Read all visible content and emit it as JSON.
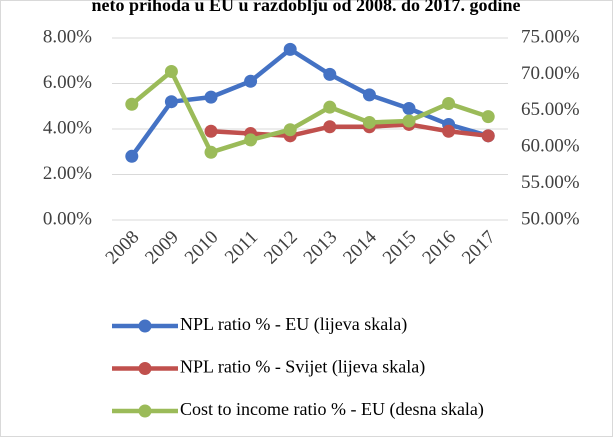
{
  "chart_data": {
    "type": "line",
    "title": "neto prihoda u EU u razdoblju od 2008. do 2017. godine",
    "categories": [
      "2008",
      "2009",
      "2010",
      "2011",
      "2012",
      "2013",
      "2014",
      "2015",
      "2016",
      "2017"
    ],
    "series": [
      {
        "name": "NPL ratio % - EU (lijeva skala)",
        "color": "#4472c4",
        "values": [
          2.8,
          5.2,
          5.4,
          6.1,
          7.5,
          6.4,
          5.5,
          4.9,
          4.2,
          3.7
        ]
      },
      {
        "name": "NPL ratio % - Svijet (lijeva skala)",
        "color": "#c0504d",
        "values": [
          null,
          null,
          3.9,
          3.8,
          3.7,
          4.1,
          4.1,
          4.2,
          3.9,
          3.7
        ]
      },
      {
        "name": "Cost to income ratio % - EU (desna skala)",
        "color": "#9bbb59",
        "axis": "y2",
        "values": [
          65.9,
          70.4,
          59.3,
          61.0,
          62.4,
          65.5,
          63.4,
          63.6,
          66.0,
          64.2
        ]
      }
    ],
    "ylim": [
      0,
      8
    ],
    "yticks": [
      {
        "value": 0,
        "label": "0.00%"
      },
      {
        "value": 2,
        "label": "2.00%"
      },
      {
        "value": 4,
        "label": "4.00%"
      },
      {
        "value": 6,
        "label": "6.00%"
      },
      {
        "value": 8,
        "label": "8.00%"
      }
    ],
    "y2lim": [
      50,
      75
    ],
    "y2ticks": [
      {
        "value": 50,
        "label": "50.00%"
      },
      {
        "value": 55,
        "label": "55.00%"
      },
      {
        "value": 60,
        "label": "60.00%"
      },
      {
        "value": 65,
        "label": "65.00%"
      },
      {
        "value": 70,
        "label": "70.00%"
      },
      {
        "value": 75,
        "label": "75.00%"
      }
    ],
    "grid": true,
    "legend": "bottom"
  }
}
